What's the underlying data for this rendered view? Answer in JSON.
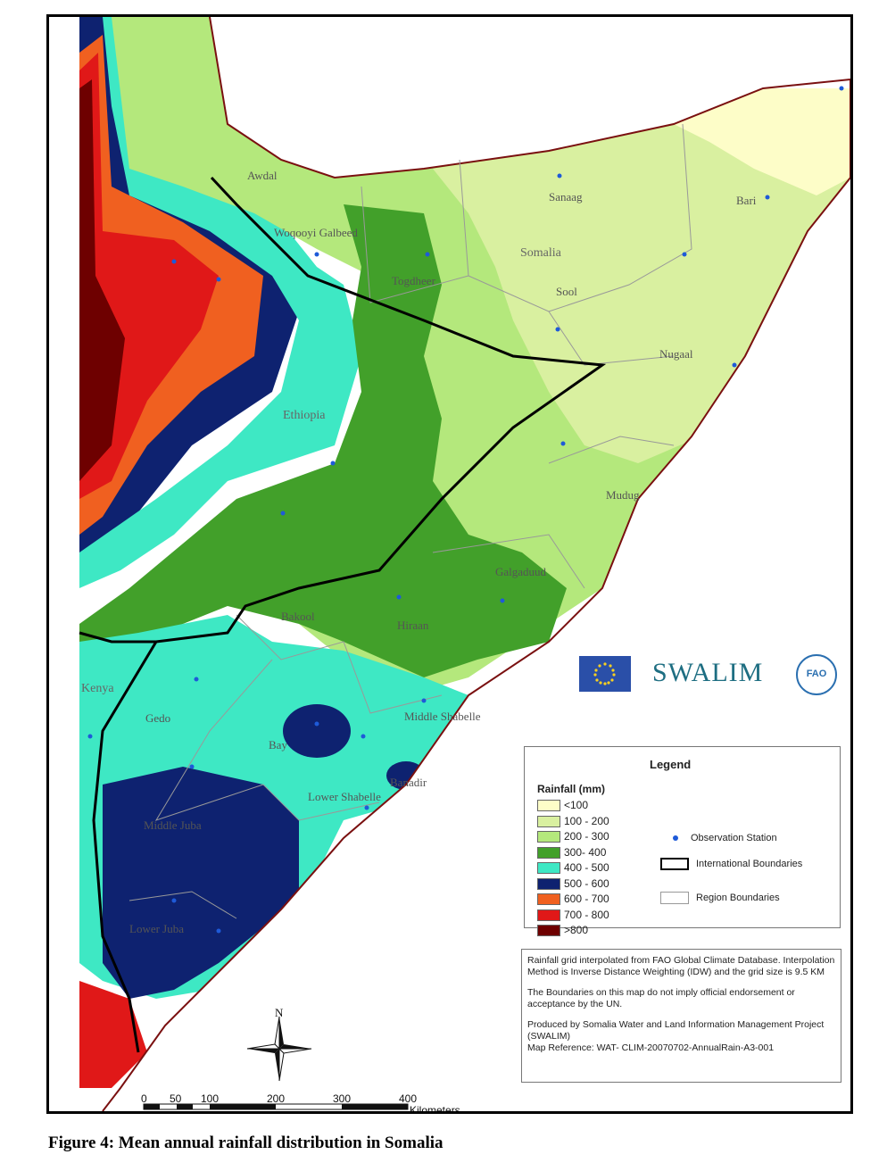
{
  "caption": "Figure 4:  Mean annual rainfall distribution in Somalia",
  "regions": {
    "awdal": "Awdal",
    "woqooyi": "Woqooyi Galbeed",
    "togdheer": "Togdheer",
    "sanaag": "Sanaag",
    "bari": "Bari",
    "sool": "Sool",
    "nugaal": "Nugaal",
    "mudug": "Mudug",
    "galgaduud": "Galgaduud",
    "bakool": "Bakool",
    "hiraan": "Hiraan",
    "gedo": "Gedo",
    "bay": "Bay",
    "middle_shabelle": "Middle Shabelle",
    "banadir": "Banadir",
    "lower_shabelle": "Lower Shabelle",
    "middle_juba": "Middle Juba",
    "lower_juba": "Lower Juba"
  },
  "countries": {
    "somalia": "Somalia",
    "ethiopia": "Ethiopia",
    "kenya": "Kenya"
  },
  "legend": {
    "title": "Legend",
    "subtitle": "Rainfall (mm)",
    "classes": [
      {
        "label": "<100",
        "color": "#fdfdc8"
      },
      {
        "label": "100 - 200",
        "color": "#d9f0a0"
      },
      {
        "label": "200 - 300",
        "color": "#b4e87c"
      },
      {
        "label": "300- 400",
        "color": "#42a02a"
      },
      {
        "label": "400 - 500",
        "color": "#3ee8c4"
      },
      {
        "label": "500 - 600",
        "color": "#0e2270"
      },
      {
        "label": "600 - 700",
        "color": "#f06020"
      },
      {
        "label": "700 - 800",
        "color": "#e01818"
      },
      {
        "label": ">800",
        "color": "#6e0000"
      }
    ],
    "symbols": {
      "station": "Observation Station",
      "international": "International Boundaries",
      "region": "Region Boundaries"
    }
  },
  "logos": {
    "swalim": "SWALIM",
    "fao": "FAO"
  },
  "notes": {
    "p1": "Rainfall grid interpolated from FAO Global Climate Database. Interpolation Method is Inverse Distance Weighting (IDW)  and the grid size is 9.5 KM",
    "p2": "The Boundaries on this map do not imply official endorsement or acceptance by the UN.",
    "p3": "Produced by Somalia Water and Land Information Management Project (SWALIM)",
    "p4": "Map Reference: WAT- CLIM-20070702-AnnualRain-A3-001"
  },
  "north": "N",
  "scale": {
    "ticks": [
      "0",
      "50",
      "100",
      "200",
      "300",
      "400"
    ],
    "unit": "Kilometers"
  }
}
